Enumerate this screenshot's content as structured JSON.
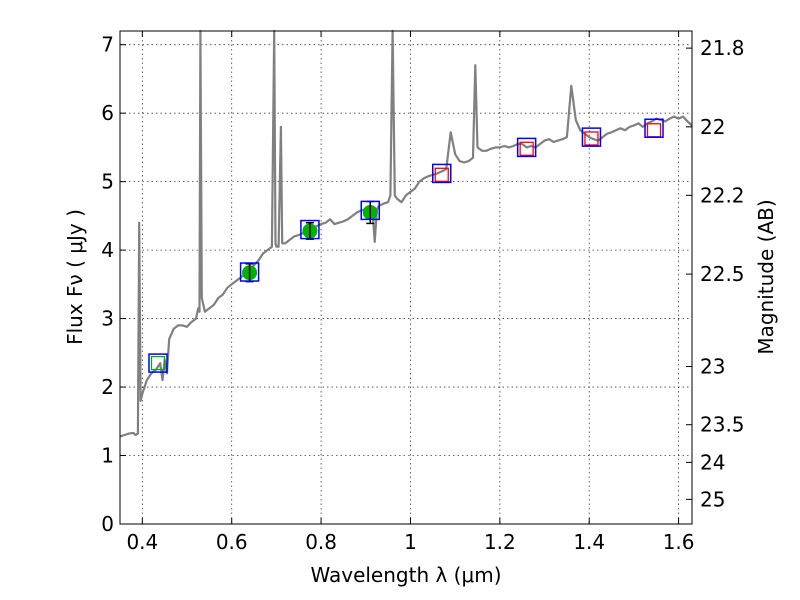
{
  "chart_data": {
    "type": "line",
    "xlabel": "Wavelength  λ (μm)",
    "ylabel": "Flux  Fν  ( μJy )",
    "y2label": "Magnitude (AB)",
    "xlim": [
      0.35,
      1.63
    ],
    "ylim": [
      0,
      7.2
    ],
    "grid": true,
    "x_ticks": [
      0.4,
      0.6,
      0.8,
      1.0,
      1.2,
      1.4,
      1.6
    ],
    "x_tick_labels": [
      "0.4",
      "0.6",
      "0.8",
      "1",
      "1.2",
      "1.4",
      "1.6"
    ],
    "y_ticks": [
      0,
      1,
      2,
      3,
      4,
      5,
      6,
      7
    ],
    "y_tick_labels": [
      "0",
      "1",
      "2",
      "3",
      "4",
      "5",
      "6",
      "7"
    ],
    "mag_ticks": [
      {
        "label": "21.8",
        "flux": 6.95
      },
      {
        "label": "22",
        "flux": 5.8
      },
      {
        "label": "22.2",
        "flux": 4.8
      },
      {
        "label": "22.5",
        "flux": 3.65
      },
      {
        "label": "23",
        "flux": 2.3
      },
      {
        "label": "23.5",
        "flux": 1.45
      },
      {
        "label": "24",
        "flux": 0.9
      },
      {
        "label": "25",
        "flux": 0.36
      }
    ],
    "series": [
      {
        "kind": "spectrum",
        "color": "#808080",
        "points": [
          [
            0.35,
            1.28
          ],
          [
            0.36,
            1.3
          ],
          [
            0.37,
            1.32
          ],
          [
            0.38,
            1.33
          ],
          [
            0.385,
            1.3
          ],
          [
            0.39,
            1.32
          ],
          [
            0.393,
            4.4
          ],
          [
            0.396,
            1.8
          ],
          [
            0.4,
            1.9
          ],
          [
            0.41,
            2.1
          ],
          [
            0.42,
            2.2
          ],
          [
            0.43,
            2.25
          ],
          [
            0.44,
            2.35
          ],
          [
            0.445,
            2.1
          ],
          [
            0.45,
            2.4
          ],
          [
            0.455,
            2.2
          ],
          [
            0.46,
            2.7
          ],
          [
            0.47,
            2.85
          ],
          [
            0.48,
            2.9
          ],
          [
            0.49,
            2.9
          ],
          [
            0.5,
            2.88
          ],
          [
            0.51,
            2.95
          ],
          [
            0.52,
            3.0
          ],
          [
            0.525,
            3.15
          ],
          [
            0.528,
            3.1
          ],
          [
            0.53,
            7.2
          ],
          [
            0.533,
            3.3
          ],
          [
            0.54,
            3.1
          ],
          [
            0.55,
            3.15
          ],
          [
            0.56,
            3.2
          ],
          [
            0.57,
            3.3
          ],
          [
            0.58,
            3.35
          ],
          [
            0.59,
            3.45
          ],
          [
            0.6,
            3.5
          ],
          [
            0.61,
            3.55
          ],
          [
            0.62,
            3.6
          ],
          [
            0.63,
            3.65
          ],
          [
            0.64,
            3.7
          ],
          [
            0.65,
            3.78
          ],
          [
            0.66,
            3.85
          ],
          [
            0.67,
            3.95
          ],
          [
            0.68,
            4.0
          ],
          [
            0.69,
            4.05
          ],
          [
            0.695,
            7.2
          ],
          [
            0.698,
            4.1
          ],
          [
            0.7,
            4.05
          ],
          [
            0.705,
            4.05
          ],
          [
            0.71,
            5.8
          ],
          [
            0.713,
            4.1
          ],
          [
            0.72,
            4.1
          ],
          [
            0.73,
            4.15
          ],
          [
            0.74,
            4.2
          ],
          [
            0.75,
            4.22
          ],
          [
            0.76,
            4.25
          ],
          [
            0.77,
            4.28
          ],
          [
            0.78,
            4.3
          ],
          [
            0.79,
            4.35
          ],
          [
            0.8,
            4.38
          ],
          [
            0.81,
            4.4
          ],
          [
            0.82,
            4.45
          ],
          [
            0.83,
            4.38
          ],
          [
            0.84,
            4.4
          ],
          [
            0.85,
            4.42
          ],
          [
            0.86,
            4.45
          ],
          [
            0.87,
            4.5
          ],
          [
            0.88,
            4.55
          ],
          [
            0.89,
            4.58
          ],
          [
            0.9,
            4.6
          ],
          [
            0.91,
            4.62
          ],
          [
            0.915,
            4.6
          ],
          [
            0.92,
            4.12
          ],
          [
            0.925,
            4.6
          ],
          [
            0.93,
            4.65
          ],
          [
            0.94,
            4.68
          ],
          [
            0.95,
            4.7
          ],
          [
            0.955,
            4.8
          ],
          [
            0.96,
            7.2
          ],
          [
            0.965,
            4.8
          ],
          [
            0.97,
            4.75
          ],
          [
            0.98,
            4.7
          ],
          [
            0.99,
            4.8
          ],
          [
            1.0,
            4.85
          ],
          [
            1.01,
            4.9
          ],
          [
            1.02,
            5.0
          ],
          [
            1.03,
            5.05
          ],
          [
            1.04,
            5.08
          ],
          [
            1.05,
            5.1
          ],
          [
            1.06,
            5.12
          ],
          [
            1.07,
            5.15
          ],
          [
            1.08,
            5.18
          ],
          [
            1.09,
            5.72
          ],
          [
            1.1,
            5.4
          ],
          [
            1.11,
            5.3
          ],
          [
            1.12,
            5.28
          ],
          [
            1.13,
            5.3
          ],
          [
            1.14,
            5.35
          ],
          [
            1.145,
            6.7
          ],
          [
            1.15,
            5.5
          ],
          [
            1.16,
            5.45
          ],
          [
            1.17,
            5.45
          ],
          [
            1.18,
            5.48
          ],
          [
            1.19,
            5.5
          ],
          [
            1.2,
            5.5
          ],
          [
            1.21,
            5.52
          ],
          [
            1.22,
            5.5
          ],
          [
            1.23,
            5.52
          ],
          [
            1.24,
            5.55
          ],
          [
            1.25,
            5.55
          ],
          [
            1.26,
            5.5
          ],
          [
            1.27,
            5.52
          ],
          [
            1.28,
            5.5
          ],
          [
            1.29,
            5.55
          ],
          [
            1.3,
            5.6
          ],
          [
            1.31,
            5.62
          ],
          [
            1.32,
            5.58
          ],
          [
            1.33,
            5.6
          ],
          [
            1.34,
            5.62
          ],
          [
            1.35,
            5.65
          ],
          [
            1.36,
            6.4
          ],
          [
            1.37,
            5.9
          ],
          [
            1.38,
            5.75
          ],
          [
            1.39,
            5.7
          ],
          [
            1.4,
            5.65
          ],
          [
            1.41,
            5.62
          ],
          [
            1.42,
            5.6
          ],
          [
            1.43,
            5.65
          ],
          [
            1.44,
            5.7
          ],
          [
            1.45,
            5.72
          ],
          [
            1.46,
            5.75
          ],
          [
            1.47,
            5.78
          ],
          [
            1.48,
            5.75
          ],
          [
            1.49,
            5.8
          ],
          [
            1.5,
            5.82
          ],
          [
            1.51,
            5.85
          ],
          [
            1.52,
            5.8
          ],
          [
            1.53,
            5.85
          ],
          [
            1.54,
            5.88
          ],
          [
            1.55,
            5.92
          ],
          [
            1.56,
            5.9
          ],
          [
            1.57,
            5.88
          ],
          [
            1.58,
            5.92
          ],
          [
            1.59,
            5.95
          ],
          [
            1.6,
            5.92
          ],
          [
            1.61,
            5.95
          ],
          [
            1.62,
            5.88
          ],
          [
            1.63,
            5.82
          ]
        ]
      },
      {
        "kind": "model-photometry",
        "marker": "blue-square",
        "color": "#0000ff",
        "points": [
          [
            0.435,
            2.35
          ],
          [
            0.64,
            3.68
          ],
          [
            0.775,
            4.3
          ],
          [
            0.91,
            4.58
          ],
          [
            1.07,
            5.12
          ],
          [
            1.26,
            5.5
          ],
          [
            1.405,
            5.65
          ],
          [
            1.545,
            5.78
          ]
        ]
      },
      {
        "kind": "observed",
        "marker": "green-circle-errorbar",
        "color": "#00b200",
        "points": [
          {
            "x": 0.64,
            "y": 3.67,
            "err": 0.13
          },
          {
            "x": 0.775,
            "y": 4.28,
            "err": 0.12
          },
          {
            "x": 0.91,
            "y": 4.55,
            "err": 0.16
          }
        ]
      },
      {
        "kind": "observed-open",
        "marker": "green-square",
        "color": "#00b200",
        "points": [
          [
            0.435,
            2.35
          ]
        ]
      },
      {
        "kind": "upper-limit",
        "marker": "red-square",
        "color": "#ff0000",
        "points": [
          [
            1.07,
            5.1
          ],
          [
            1.26,
            5.48
          ],
          [
            1.405,
            5.63
          ],
          [
            1.545,
            5.75
          ]
        ]
      }
    ]
  }
}
